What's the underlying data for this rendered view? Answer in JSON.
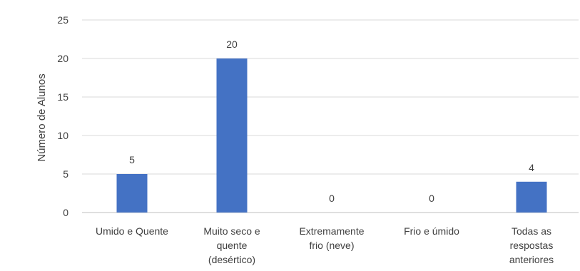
{
  "chart_data": {
    "type": "bar",
    "title": "",
    "xlabel": "",
    "ylabel": "Número de Alunos",
    "categories": [
      [
        "Umido e Quente"
      ],
      [
        "Muito seco e",
        "quente",
        "(desértico)"
      ],
      [
        "Extremamente",
        "frio (neve)"
      ],
      [
        "Frio e úmido"
      ],
      [
        "Todas as",
        "respostas",
        "anteriores"
      ]
    ],
    "values": [
      5,
      20,
      0,
      0,
      4
    ],
    "ylim": [
      0,
      25
    ],
    "yticks": [
      0,
      5,
      10,
      15,
      20,
      25
    ],
    "grid": true,
    "legend": "none",
    "bar_color": "#4472c4"
  }
}
